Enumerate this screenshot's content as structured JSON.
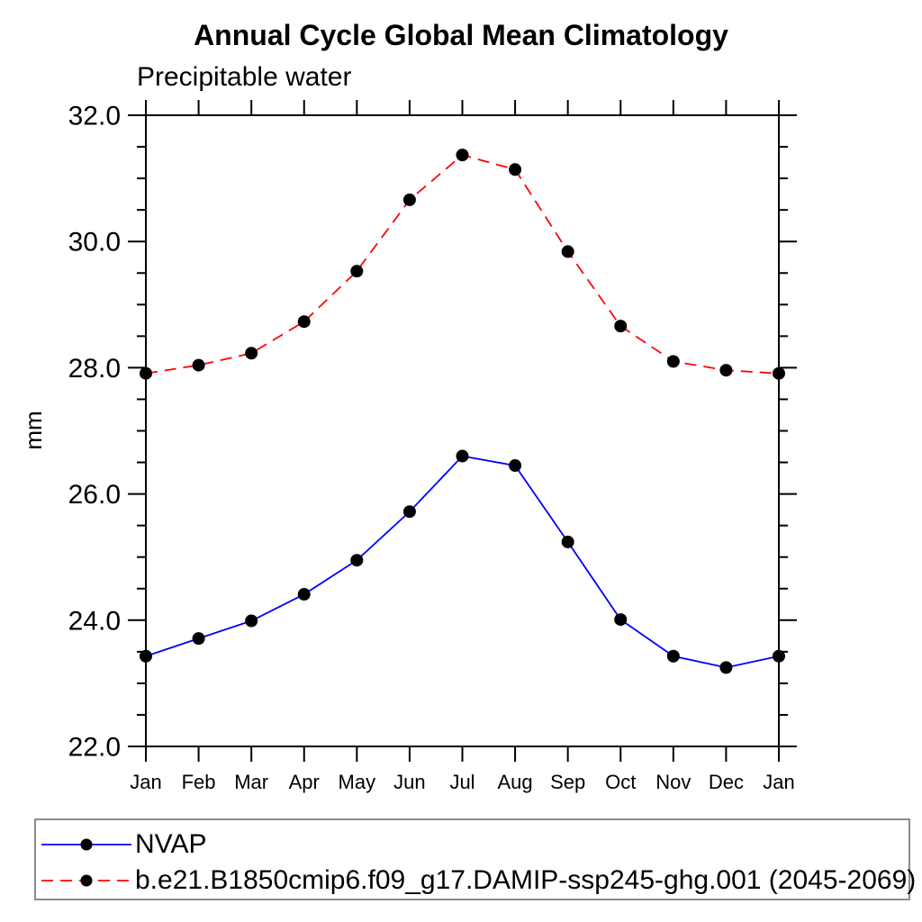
{
  "chart_data": {
    "type": "line",
    "title": "Annual Cycle Global Mean Climatology",
    "subtitle": "Precipitable water",
    "xlabel": "",
    "ylabel": "mm",
    "x_categories": [
      "Jan",
      "Feb",
      "Mar",
      "Apr",
      "May",
      "Jun",
      "Jul",
      "Aug",
      "Sep",
      "Oct",
      "Nov",
      "Dec",
      "Jan"
    ],
    "ylim": [
      22.0,
      32.0
    ],
    "ytick_major_interval": 2.0,
    "ytick_minor_interval": 0.5,
    "ytick_labels": [
      "22.0",
      "24.0",
      "26.0",
      "28.0",
      "30.0",
      "32.0"
    ],
    "grid": false,
    "legend_position": "bottom-left",
    "marker": {
      "shape": "circle",
      "color": "#000000"
    },
    "axis_color": "#000000",
    "series": [
      {
        "name": "NVAP",
        "color": "#0000ff",
        "style": "solid",
        "values": [
          23.43,
          23.71,
          23.99,
          24.41,
          24.95,
          25.72,
          26.6,
          26.45,
          25.24,
          24.01,
          23.43,
          23.25,
          23.43
        ]
      },
      {
        "name": "b.e21.B1850cmip6.f09_g17.DAMIP-ssp245-ghg.001 (2045-2069)",
        "color": "#ff0000",
        "style": "dashed",
        "values": [
          27.91,
          28.04,
          28.23,
          28.73,
          29.53,
          30.66,
          31.37,
          31.14,
          29.84,
          28.66,
          28.1,
          27.96,
          27.91
        ]
      }
    ]
  }
}
